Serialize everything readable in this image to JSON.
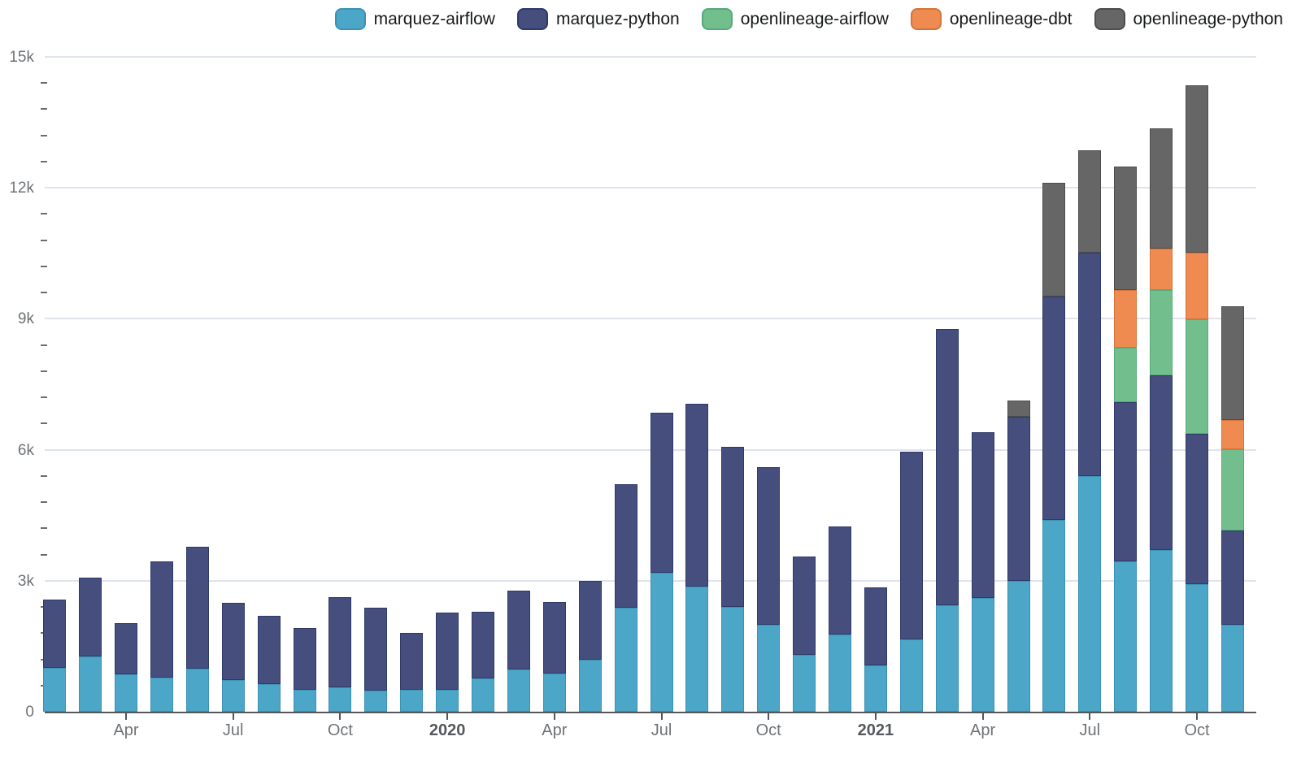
{
  "page": {
    "background": "#ffffff"
  },
  "legend": {
    "items": [
      {
        "label": "marquez-airflow",
        "color": "#4ba6c8",
        "border": "#3c91b5"
      },
      {
        "label": "marquez-python",
        "color": "#454e7c",
        "border": "#2f3a68"
      },
      {
        "label": "openlineage-airflow",
        "color": "#72be8d",
        "border": "#57a97b"
      },
      {
        "label": "openlineage-dbt",
        "color": "#ef8a50",
        "border": "#d3743c"
      },
      {
        "label": "openlineage-python",
        "color": "#666666",
        "border": "#4d4d4d"
      }
    ]
  },
  "axes": {
    "yticks": [
      {
        "value": 0,
        "label": "0"
      },
      {
        "value": 3000,
        "label": "3k"
      },
      {
        "value": 6000,
        "label": "6k"
      },
      {
        "value": 9000,
        "label": "9k"
      },
      {
        "value": 12000,
        "label": "12k"
      },
      {
        "value": 15000,
        "label": "15k"
      }
    ],
    "minor_step": 600,
    "xticks": [
      {
        "index": 2,
        "label": "Apr",
        "bold": false
      },
      {
        "index": 5,
        "label": "Jul",
        "bold": false
      },
      {
        "index": 8,
        "label": "Oct",
        "bold": false
      },
      {
        "index": 11,
        "label": "2020",
        "bold": true
      },
      {
        "index": 14,
        "label": "Apr",
        "bold": false
      },
      {
        "index": 17,
        "label": "Jul",
        "bold": false
      },
      {
        "index": 20,
        "label": "Oct",
        "bold": false
      },
      {
        "index": 23,
        "label": "2021",
        "bold": true
      },
      {
        "index": 26,
        "label": "Apr",
        "bold": false
      },
      {
        "index": 29,
        "label": "Jul",
        "bold": false
      },
      {
        "index": 32,
        "label": "Oct",
        "bold": false
      }
    ]
  },
  "chart_data": {
    "type": "bar",
    "stacked": true,
    "title": "",
    "xlabel": "",
    "ylabel": "",
    "ylim": [
      0,
      15000
    ],
    "grid": "horizontal-major",
    "legend_position": "top-right",
    "categories": [
      "Feb 2019",
      "Mar 2019",
      "Apr 2019",
      "May 2019",
      "Jun 2019",
      "Jul 2019",
      "Aug 2019",
      "Sep 2019",
      "Oct 2019",
      "Nov 2019",
      "Dec 2019",
      "Jan 2020",
      "Feb 2020",
      "Mar 2020",
      "Apr 2020",
      "May 2020",
      "Jun 2020",
      "Jul 2020",
      "Aug 2020",
      "Sep 2020",
      "Oct 2020",
      "Nov 2020",
      "Dec 2020",
      "Jan 2021",
      "Feb 2021",
      "Mar 2021",
      "Apr 2021",
      "May 2021",
      "Jun 2021",
      "Jul 2021",
      "Aug 2021",
      "Sep 2021",
      "Oct 2021",
      "Nov 2021"
    ],
    "series": [
      {
        "name": "marquez-airflow",
        "color": "#4ba6c8",
        "border": "#3c91b5",
        "values": [
          1000,
          1270,
          860,
          790,
          980,
          720,
          630,
          500,
          550,
          480,
          500,
          510,
          770,
          960,
          880,
          1200,
          2390,
          3190,
          2860,
          2410,
          2000,
          1310,
          1770,
          1070,
          1650,
          2430,
          2600,
          2990,
          4400,
          5400,
          3450,
          3710,
          2930,
          2000
        ]
      },
      {
        "name": "marquez-python",
        "color": "#454e7c",
        "border": "#2f3a68",
        "values": [
          1570,
          1810,
          1160,
          2650,
          2790,
          1770,
          1560,
          1410,
          2070,
          1900,
          1310,
          1760,
          1520,
          1810,
          1630,
          1800,
          2820,
          3650,
          4190,
          3650,
          3600,
          2250,
          2480,
          1780,
          4300,
          6330,
          3810,
          3770,
          5110,
          5120,
          3640,
          4000,
          3440,
          2150
        ]
      },
      {
        "name": "openlineage-airflow",
        "color": "#72be8d",
        "border": "#57a97b",
        "values": [
          0,
          0,
          0,
          0,
          0,
          0,
          0,
          0,
          0,
          0,
          0,
          0,
          0,
          0,
          0,
          0,
          0,
          0,
          0,
          0,
          0,
          0,
          0,
          0,
          0,
          0,
          0,
          0,
          0,
          0,
          1250,
          1950,
          2620,
          1860
        ]
      },
      {
        "name": "openlineage-dbt",
        "color": "#ef8a50",
        "border": "#d3743c",
        "values": [
          0,
          0,
          0,
          0,
          0,
          0,
          0,
          0,
          0,
          0,
          0,
          0,
          0,
          0,
          0,
          0,
          0,
          0,
          0,
          0,
          0,
          0,
          0,
          0,
          0,
          0,
          0,
          0,
          0,
          0,
          1320,
          940,
          1530,
          680
        ]
      },
      {
        "name": "openlineage-python",
        "color": "#666666",
        "border": "#4d4d4d",
        "values": [
          0,
          0,
          0,
          0,
          0,
          0,
          0,
          0,
          0,
          0,
          0,
          0,
          0,
          0,
          0,
          0,
          0,
          0,
          0,
          0,
          0,
          0,
          0,
          0,
          0,
          0,
          0,
          360,
          2600,
          2340,
          2830,
          2760,
          3830,
          2600
        ]
      }
    ]
  }
}
